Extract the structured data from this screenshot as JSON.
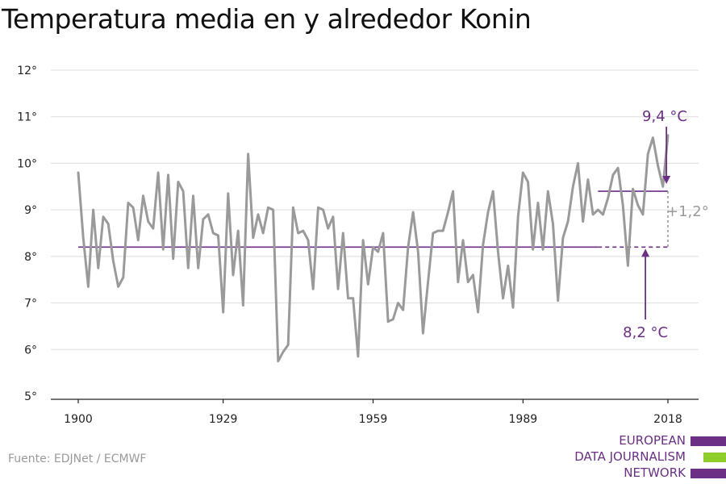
{
  "title": "Temperatura media en y alrededor Konin",
  "source": "Fuente: EDJNet / ECMWF",
  "logo": {
    "lines": [
      "EUROPEAN",
      "DATA JOURNALISM",
      "NETWORK"
    ],
    "colors": [
      "#6b2f86",
      "#8fce2a",
      "#6b2f86"
    ]
  },
  "chart_data": {
    "type": "line",
    "ylim": [
      5,
      12
    ],
    "xlim": [
      1900,
      2018
    ],
    "y_ticks": [
      5,
      6,
      7,
      8,
      9,
      10,
      11,
      12
    ],
    "y_tick_labels": [
      "5°",
      "6°",
      "7°",
      "8°",
      "9°",
      "10°",
      "11°",
      "12°"
    ],
    "x_ticks": [
      1900,
      1929,
      1959,
      1989,
      2018
    ],
    "x_tick_labels": [
      "1900",
      "1929",
      "1959",
      "1989",
      "2018"
    ],
    "grid": true,
    "colors": {
      "series": "#9a9a9a",
      "reference": "#6b2f86",
      "grid": "#dddddd",
      "axis": "#222222"
    },
    "series": [
      {
        "x": [
          1900,
          1901,
          1902,
          1903,
          1904,
          1905,
          1906,
          1907,
          1908,
          1909,
          1910,
          1911,
          1912,
          1913,
          1914,
          1915,
          1916,
          1917,
          1918,
          1919,
          1920,
          1921,
          1922,
          1923,
          1924,
          1925,
          1926,
          1927,
          1928,
          1929,
          1930,
          1931,
          1932,
          1933,
          1934,
          1935,
          1936,
          1937,
          1938,
          1939,
          1940,
          1941,
          1942,
          1943,
          1944,
          1945,
          1946,
          1947,
          1948,
          1949,
          1950,
          1951,
          1952,
          1953,
          1954,
          1955,
          1956,
          1957,
          1958,
          1959,
          1960,
          1961,
          1962,
          1963,
          1964,
          1965,
          1966,
          1967,
          1968,
          1969,
          1970,
          1971,
          1972,
          1973,
          1974,
          1975,
          1976,
          1977,
          1978,
          1979,
          1980,
          1981,
          1982,
          1983,
          1984,
          1985,
          1986,
          1987,
          1988,
          1989,
          1990,
          1991,
          1992,
          1993,
          1994,
          1995,
          1996,
          1997,
          1998,
          1999,
          2000,
          2001,
          2002,
          2003,
          2004,
          2005,
          2006,
          2007,
          2008,
          2009,
          2010,
          2011,
          2012,
          2013,
          2014,
          2015,
          2016,
          2017,
          2018
        ],
        "values": [
          9.8,
          8.4,
          7.35,
          9.0,
          7.75,
          8.85,
          8.7,
          7.9,
          7.35,
          7.55,
          9.15,
          9.05,
          8.35,
          9.3,
          8.75,
          8.6,
          9.8,
          8.15,
          9.75,
          7.95,
          9.6,
          9.4,
          7.75,
          9.3,
          7.75,
          8.8,
          8.9,
          8.5,
          8.45,
          6.8,
          9.35,
          7.6,
          8.55,
          6.95,
          10.2,
          8.4,
          8.9,
          8.5,
          9.05,
          9.0,
          5.75,
          5.95,
          6.1,
          9.05,
          8.5,
          8.55,
          8.35,
          7.3,
          9.05,
          9.0,
          8.6,
          8.85,
          7.3,
          8.5,
          7.1,
          7.1,
          5.85,
          8.35,
          7.4,
          8.2,
          8.1,
          8.5,
          6.6,
          6.65,
          7.0,
          6.85,
          8.2,
          8.95,
          8.1,
          6.35,
          7.45,
          8.5,
          8.55,
          8.55,
          8.95,
          9.4,
          7.45,
          8.35,
          7.45,
          7.6,
          6.8,
          8.25,
          8.95,
          9.4,
          8.1,
          7.1,
          7.8,
          6.9,
          8.85,
          9.8,
          9.6,
          8.15,
          9.15,
          8.15,
          9.4,
          8.7,
          7.05,
          8.4,
          8.75,
          9.5,
          10.0,
          8.75,
          9.65,
          8.9,
          9.0,
          8.9,
          9.25,
          9.75,
          9.9,
          9.1,
          7.8,
          9.45,
          9.1,
          8.9,
          10.2,
          10.55,
          9.95,
          9.5,
          10.6
        ]
      }
    ],
    "reference_lines": [
      {
        "value": 8.2,
        "label": "8,2 °C"
      },
      {
        "value": 9.4,
        "label": "9,4 °C"
      }
    ],
    "difference_label": "+1,2°"
  }
}
